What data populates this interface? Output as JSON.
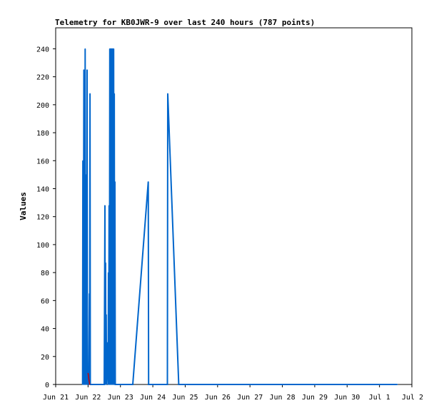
{
  "chart_data": {
    "type": "line",
    "title": "Telemetry for KB0JWR-9 over last 240 hours (787 points)",
    "xlabel": "",
    "ylabel": "Values",
    "ylim": [
      0,
      255
    ],
    "xlim": [
      0,
      11
    ],
    "x_unit": "days since Jun 21",
    "x_ticks": [
      {
        "value": 0,
        "label": "Jun 21"
      },
      {
        "value": 1,
        "label": "Jun 22"
      },
      {
        "value": 2,
        "label": "Jun 23"
      },
      {
        "value": 3,
        "label": "Jun 24"
      },
      {
        "value": 4,
        "label": "Jun 25"
      },
      {
        "value": 5,
        "label": "Jun 26"
      },
      {
        "value": 6,
        "label": "Jun 27"
      },
      {
        "value": 7,
        "label": "Jun 28"
      },
      {
        "value": 8,
        "label": "Jun 29"
      },
      {
        "value": 9,
        "label": "Jun 30"
      },
      {
        "value": 10,
        "label": "Jul 1"
      },
      {
        "value": 11,
        "label": "Jul 2"
      }
    ],
    "y_ticks": [
      0,
      20,
      40,
      60,
      80,
      100,
      120,
      140,
      160,
      180,
      200,
      220,
      240
    ],
    "grid": false,
    "legend": "none",
    "series": [
      {
        "name": "",
        "color": "#0066cc",
        "points": [
          [
            0.83,
            0
          ],
          [
            0.84,
            160
          ],
          [
            0.85,
            0
          ],
          [
            0.86,
            80
          ],
          [
            0.87,
            225
          ],
          [
            0.88,
            0
          ],
          [
            0.89,
            208
          ],
          [
            0.9,
            0
          ],
          [
            0.91,
            240
          ],
          [
            0.92,
            0
          ],
          [
            0.93,
            145
          ],
          [
            0.94,
            0
          ],
          [
            0.95,
            150
          ],
          [
            0.96,
            0
          ],
          [
            0.97,
            225
          ],
          [
            0.98,
            0
          ],
          [
            1.0,
            5
          ],
          [
            1.02,
            0
          ],
          [
            1.04,
            65
          ],
          [
            1.05,
            0
          ],
          [
            1.06,
            208
          ],
          [
            1.07,
            0
          ],
          [
            1.5,
            0
          ],
          [
            1.52,
            128
          ],
          [
            1.53,
            0
          ],
          [
            1.54,
            87
          ],
          [
            1.55,
            0
          ],
          [
            1.56,
            50
          ],
          [
            1.57,
            0
          ],
          [
            1.6,
            30
          ],
          [
            1.62,
            0
          ],
          [
            1.63,
            80
          ],
          [
            1.64,
            0
          ],
          [
            1.65,
            128
          ],
          [
            1.66,
            0
          ],
          [
            1.67,
            240
          ],
          [
            1.68,
            0
          ],
          [
            1.69,
            240
          ],
          [
            1.7,
            0
          ],
          [
            1.71,
            240
          ],
          [
            1.72,
            0
          ],
          [
            1.73,
            240
          ],
          [
            1.74,
            0
          ],
          [
            1.75,
            240
          ],
          [
            1.76,
            0
          ],
          [
            1.77,
            240
          ],
          [
            1.78,
            0
          ],
          [
            1.79,
            240
          ],
          [
            1.8,
            0
          ],
          [
            1.81,
            208
          ],
          [
            1.82,
            0
          ],
          [
            1.83,
            145
          ],
          [
            1.84,
            0
          ],
          [
            2.38,
            0
          ],
          [
            2.86,
            145
          ],
          [
            2.87,
            0
          ],
          [
            3.45,
            0
          ],
          [
            3.46,
            208
          ],
          [
            3.8,
            0
          ],
          [
            10.55,
            0
          ]
        ]
      },
      {
        "name": "",
        "color": "#cc0000",
        "points": [
          [
            1.0,
            8
          ],
          [
            1.03,
            3
          ],
          [
            1.05,
            0
          ]
        ]
      }
    ]
  }
}
